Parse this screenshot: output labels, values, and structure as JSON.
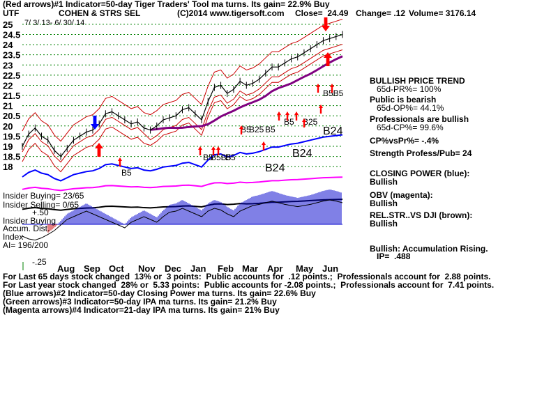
{
  "header": {
    "line1": "(Red arrows)#1 Indicator=50-day Tiger Traders' Tool ma turns. Its gain= 22.9% Buy",
    "symbol": "UTF",
    "name": "COHEN & STRS SEL",
    "copyright": "(C)2014 www.tigersoft.com",
    "close": "Close=  24.49",
    "change": "Change= .12",
    "volume": "Volume= 3176.14",
    "date_range": "7/ 3/ 13- 6/ 30/ 14"
  },
  "right_panel": [
    {
      "text": "BULLISH PRICE TREND",
      "bold": true
    },
    {
      "text": "   65d-PR%= 100%",
      "bold": false
    },
    {
      "text": "Public is bearish",
      "bold": true
    },
    {
      "text": "   65d-OP%= 44.1%",
      "bold": false
    },
    {
      "text": "Professionals are bullish",
      "bold": true
    },
    {
      "text": "   65d-CP%= 99.6%",
      "bold": false
    },
    {
      "text": "CP%vsPr%= -.4%",
      "bold": true
    },
    {
      "text": "Strength Profess/Pub= 24",
      "bold": true
    },
    {
      "text": "CLOSING POWER (blue):",
      "bold": true
    },
    {
      "text": "Bullish",
      "bold": true
    },
    {
      "text": "OBV (magenta):",
      "bold": true
    },
    {
      "text": "Bullish",
      "bold": true
    },
    {
      "text": "REL.STR..VS DJI (brown):",
      "bold": true
    },
    {
      "text": "Bullish",
      "bold": true
    },
    {
      "text": "Bullish: Accumulation Rising.",
      "bold": true
    },
    {
      "text": "   IP=  .488",
      "bold": true
    }
  ],
  "left_labels": {
    "insider_buying": "Insider Buying= 23/65",
    "insider_selling": "Insider Selling= 0/65",
    "plus50": "+.50",
    "insider_buying2": "Insider Buying",
    "accum": "Accum. Dist.",
    "index": "Index",
    "ai": "AI= 196/200",
    "minus25": "-.25"
  },
  "signals": {
    "b24": [
      "B24",
      "B24",
      "B24"
    ],
    "b5": [
      "B5",
      "B5",
      "B5",
      "B5",
      "B5",
      "B5"
    ],
    "b25": [
      "B25",
      "B25"
    ],
    "b585": "B5B5",
    "b5b5": "B5B5"
  },
  "footer": [
    "For Last 65 days stock changed  13% or  3 points:  Public accounts for  .12 points.;  Professionals account for  2.88 points.",
    "For Last year stock changed  28% or  5.33 points:  Public accounts for -2.08 points.;  Professionals account for  7.41 points.",
    "(Blue arrows)#2 Indicator=50-day Closing Power ma turns. Its gain= 22.6% Buy",
    "(Green arrows)#3 Indicator=50-day IPA ma turns. Its gain= 21.2% Buy",
    "(Magenta arrows)#4 Indicator=21-day IPA ma turns. Its gain= 21% Buy"
  ],
  "colors": {
    "price": "#000000",
    "band": "#cc0000",
    "ma": "#800080",
    "closing_power": "#0000ff",
    "obv": "#ff00ff",
    "accum_pos": "#0000cc",
    "accum_neg": "#cc0000",
    "grid": "#008000",
    "arrow_red": "#ff0000",
    "arrow_blue": "#0000ff"
  },
  "chart_data": {
    "type": "line",
    "y_ticks": [
      25,
      24.5,
      24,
      23.5,
      23,
      22.5,
      22,
      21.5,
      21,
      20.5,
      20,
      19.5,
      19,
      18.5,
      18
    ],
    "ylim": [
      17.8,
      25.1
    ],
    "months": [
      "Aug",
      "Sep",
      "Oct",
      "Nov",
      "Dec",
      "Jan",
      "Feb",
      "Mar",
      "Apr",
      "May",
      "Jun"
    ],
    "price_series": {
      "name": "",
      "x": [
        0,
        5,
        10,
        15,
        20,
        25,
        30,
        35,
        40,
        45,
        50,
        55,
        60,
        65,
        70,
        75,
        80,
        85,
        90,
        95,
        100,
        105,
        110,
        115,
        120,
        125,
        130,
        135,
        140,
        145,
        150,
        155,
        160,
        165,
        170,
        175,
        180,
        185,
        190,
        195,
        200,
        205,
        210,
        215,
        220,
        225,
        230,
        235,
        240,
        245,
        250
      ],
      "values": [
        19.0,
        19.6,
        19.9,
        19.5,
        19.3,
        18.8,
        18.5,
        18.9,
        19.3,
        19.5,
        19.7,
        19.8,
        20.1,
        20.6,
        20.7,
        20.5,
        20.3,
        20.1,
        20.2,
        19.9,
        19.8,
        20.0,
        20.3,
        20.4,
        20.5,
        20.8,
        20.9,
        20.6,
        20.3,
        21.2,
        21.9,
        22.0,
        21.6,
        21.8,
        22.2,
        22.0,
        22.1,
        22.3,
        22.6,
        22.9,
        22.9,
        23.1,
        23.3,
        23.4,
        23.6,
        23.8,
        24.0,
        24.2,
        24.3,
        24.4,
        24.5
      ]
    },
    "accum_series": {
      "name": "",
      "values": [
        -0.15,
        -0.2,
        -0.22,
        -0.18,
        -0.12,
        -0.05,
        0.05,
        0.15,
        0.2,
        0.25,
        0.3,
        0.25,
        0.2,
        0.15,
        0.1,
        0.05,
        0.0,
        0.1,
        0.15,
        0.2,
        0.15,
        0.1,
        0.2,
        0.28,
        0.3,
        0.35,
        0.3,
        0.25,
        0.2,
        0.3,
        0.35,
        0.32,
        0.25,
        0.2,
        0.3,
        0.35,
        0.4,
        0.42,
        0.45,
        0.48,
        0.45,
        0.42,
        0.4,
        0.38,
        0.4,
        0.42,
        0.45,
        0.48,
        0.5,
        0.48,
        0.45
      ]
    }
  }
}
